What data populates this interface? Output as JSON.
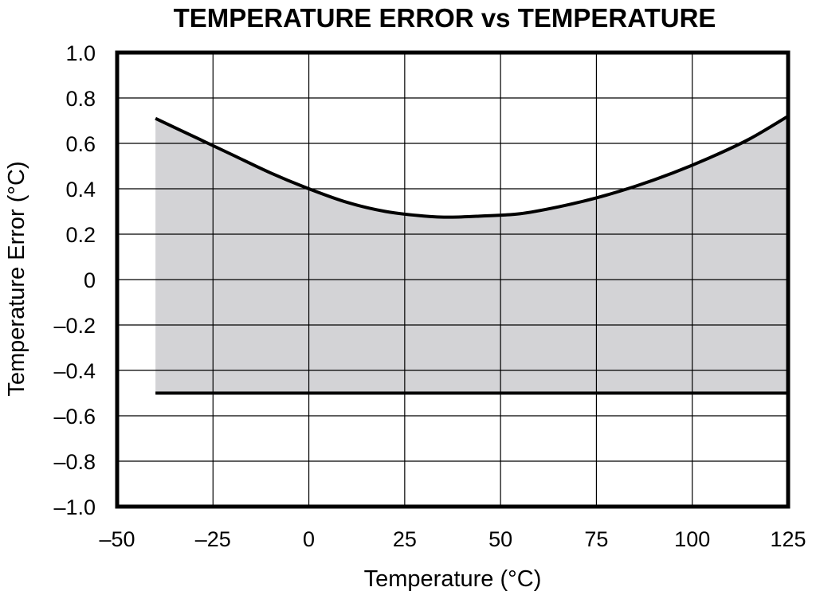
{
  "chart_data": {
    "type": "area",
    "title": "TEMPERATURE ERROR vs TEMPERATURE",
    "xlabel": "Temperature (°C)",
    "ylabel": "Temperature Error (°C)",
    "xlim": [
      -50,
      125
    ],
    "ylim": [
      -1.0,
      1.0
    ],
    "x_ticks": [
      -50,
      -25,
      0,
      25,
      50,
      75,
      100,
      125
    ],
    "x_tick_labels": [
      "–50",
      "–25",
      "0",
      "25",
      "50",
      "75",
      "100",
      "125"
    ],
    "y_ticks": [
      1.0,
      0.8,
      0.6,
      0.4,
      0.2,
      0,
      -0.2,
      -0.4,
      -0.6,
      -0.8,
      -1.0
    ],
    "y_tick_labels": [
      "1.0",
      "0.8",
      "0.6",
      "0.4",
      "0.2",
      "0",
      "–0.2",
      "–0.4",
      "–0.6",
      "–0.8",
      "–1.0"
    ],
    "grid": true,
    "series": [
      {
        "values_x": [
          -40,
          -30,
          -20,
          -10,
          0,
          10,
          20,
          30,
          37,
          45,
          55,
          65,
          75,
          85,
          95,
          105,
          115,
          125
        ],
        "values_y": [
          0.71,
          0.63,
          0.55,
          0.47,
          0.4,
          0.34,
          0.3,
          0.28,
          0.275,
          0.28,
          0.29,
          0.32,
          0.36,
          0.41,
          0.47,
          0.54,
          0.62,
          0.72
        ]
      },
      {
        "values_x": [
          -40,
          125
        ],
        "values_y": [
          -0.5,
          -0.5
        ]
      }
    ],
    "colors": {
      "fill": "#d3d3d6",
      "line": "#000000",
      "grid": "#000000"
    }
  }
}
